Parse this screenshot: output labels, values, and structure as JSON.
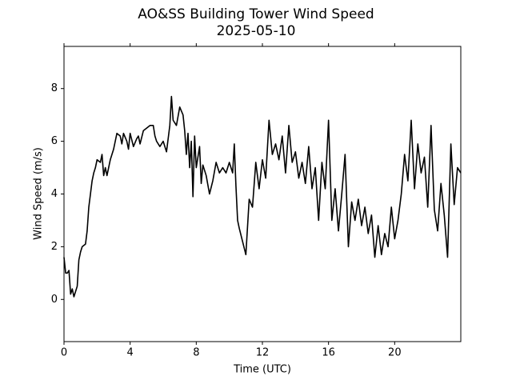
{
  "chart_data": {
    "type": "line",
    "title": "AO&SS Building Tower Wind Speed",
    "subtitle": "2025-05-10",
    "x_label": "Time (UTC)",
    "y_label": "Wind Speed (m/s)",
    "xlim": [
      0,
      24
    ],
    "xticks": [
      0,
      4,
      8,
      12,
      16,
      20
    ],
    "ylim": [
      -1.6,
      9.6
    ],
    "yticks": [
      0,
      2,
      4,
      6,
      8
    ],
    "series": [
      {
        "color": "#000000",
        "x": [
          0,
          0.1,
          0.2,
          0.3,
          0.4,
          0.5,
          0.6,
          0.7,
          0.8,
          0.9,
          1.0,
          1.1,
          1.3,
          1.4,
          1.5,
          1.6,
          1.7,
          1.8,
          1.9,
          2.0,
          2.2,
          2.3,
          2.4,
          2.5,
          2.6,
          2.8,
          3.0,
          3.2,
          3.4,
          3.5,
          3.6,
          3.8,
          3.9,
          4.0,
          4.2,
          4.4,
          4.5,
          4.6,
          4.8,
          5.0,
          5.2,
          5.4,
          5.5,
          5.6,
          5.8,
          6.0,
          6.2,
          6.4,
          6.5,
          6.6,
          6.8,
          7.0,
          7.2,
          7.3,
          7.4,
          7.5,
          7.6,
          7.7,
          7.8,
          7.9,
          8.0,
          8.2,
          8.3,
          8.4,
          8.6,
          8.8,
          9.0,
          9.2,
          9.4,
          9.6,
          9.8,
          10.0,
          10.2,
          10.3,
          10.4,
          10.5,
          10.6,
          10.8,
          11.0,
          11.2,
          11.4,
          11.6,
          11.8,
          12.0,
          12.2,
          12.4,
          12.6,
          12.8,
          13.0,
          13.2,
          13.4,
          13.6,
          13.8,
          14.0,
          14.2,
          14.4,
          14.6,
          14.8,
          15.0,
          15.2,
          15.4,
          15.6,
          15.8,
          16.0,
          16.2,
          16.4,
          16.6,
          16.8,
          17.0,
          17.2,
          17.4,
          17.6,
          17.8,
          18.0,
          18.2,
          18.4,
          18.6,
          18.8,
          19.0,
          19.2,
          19.4,
          19.6,
          19.8,
          20.0,
          20.2,
          20.4,
          20.6,
          20.8,
          21.0,
          21.2,
          21.4,
          21.6,
          21.8,
          22.0,
          22.2,
          22.4,
          22.6,
          22.8,
          23.0,
          23.2,
          23.4,
          23.6,
          23.8,
          24.0
        ],
        "values": [
          1.6,
          1.0,
          1.0,
          1.1,
          0.2,
          0.4,
          0.1,
          0.3,
          0.5,
          1.5,
          1.8,
          2.0,
          2.1,
          2.6,
          3.5,
          4.0,
          4.5,
          4.8,
          5.0,
          5.3,
          5.2,
          5.5,
          4.7,
          5.0,
          4.7,
          5.3,
          5.7,
          6.3,
          6.2,
          5.9,
          6.3,
          6.0,
          5.7,
          6.3,
          5.8,
          6.1,
          6.2,
          5.9,
          6.4,
          6.5,
          6.6,
          6.6,
          6.2,
          6.0,
          5.8,
          6.0,
          5.6,
          6.6,
          7.7,
          6.8,
          6.6,
          7.3,
          7.0,
          6.4,
          5.5,
          6.3,
          5.0,
          6.0,
          3.9,
          6.2,
          5.0,
          5.8,
          4.4,
          5.1,
          4.7,
          4.0,
          4.5,
          5.2,
          4.8,
          5.0,
          4.8,
          5.2,
          4.8,
          5.9,
          4.3,
          3.0,
          2.7,
          2.2,
          1.7,
          3.8,
          3.5,
          5.2,
          4.2,
          5.3,
          4.6,
          6.8,
          5.5,
          5.9,
          5.3,
          6.2,
          4.8,
          6.6,
          5.2,
          5.6,
          4.6,
          5.2,
          4.4,
          5.8,
          4.2,
          5.0,
          3.0,
          5.2,
          4.2,
          6.8,
          3.0,
          4.2,
          2.6,
          4.0,
          5.5,
          2.0,
          3.7,
          3.0,
          3.8,
          2.8,
          3.5,
          2.5,
          3.2,
          1.6,
          2.8,
          1.7,
          2.5,
          2.0,
          3.5,
          2.3,
          3.0,
          4.0,
          5.5,
          4.5,
          6.8,
          4.2,
          5.9,
          4.8,
          5.4,
          3.5,
          6.6,
          3.4,
          2.6,
          4.4,
          3.2,
          1.6,
          5.9,
          3.6,
          5.0,
          4.8
        ]
      }
    ]
  }
}
